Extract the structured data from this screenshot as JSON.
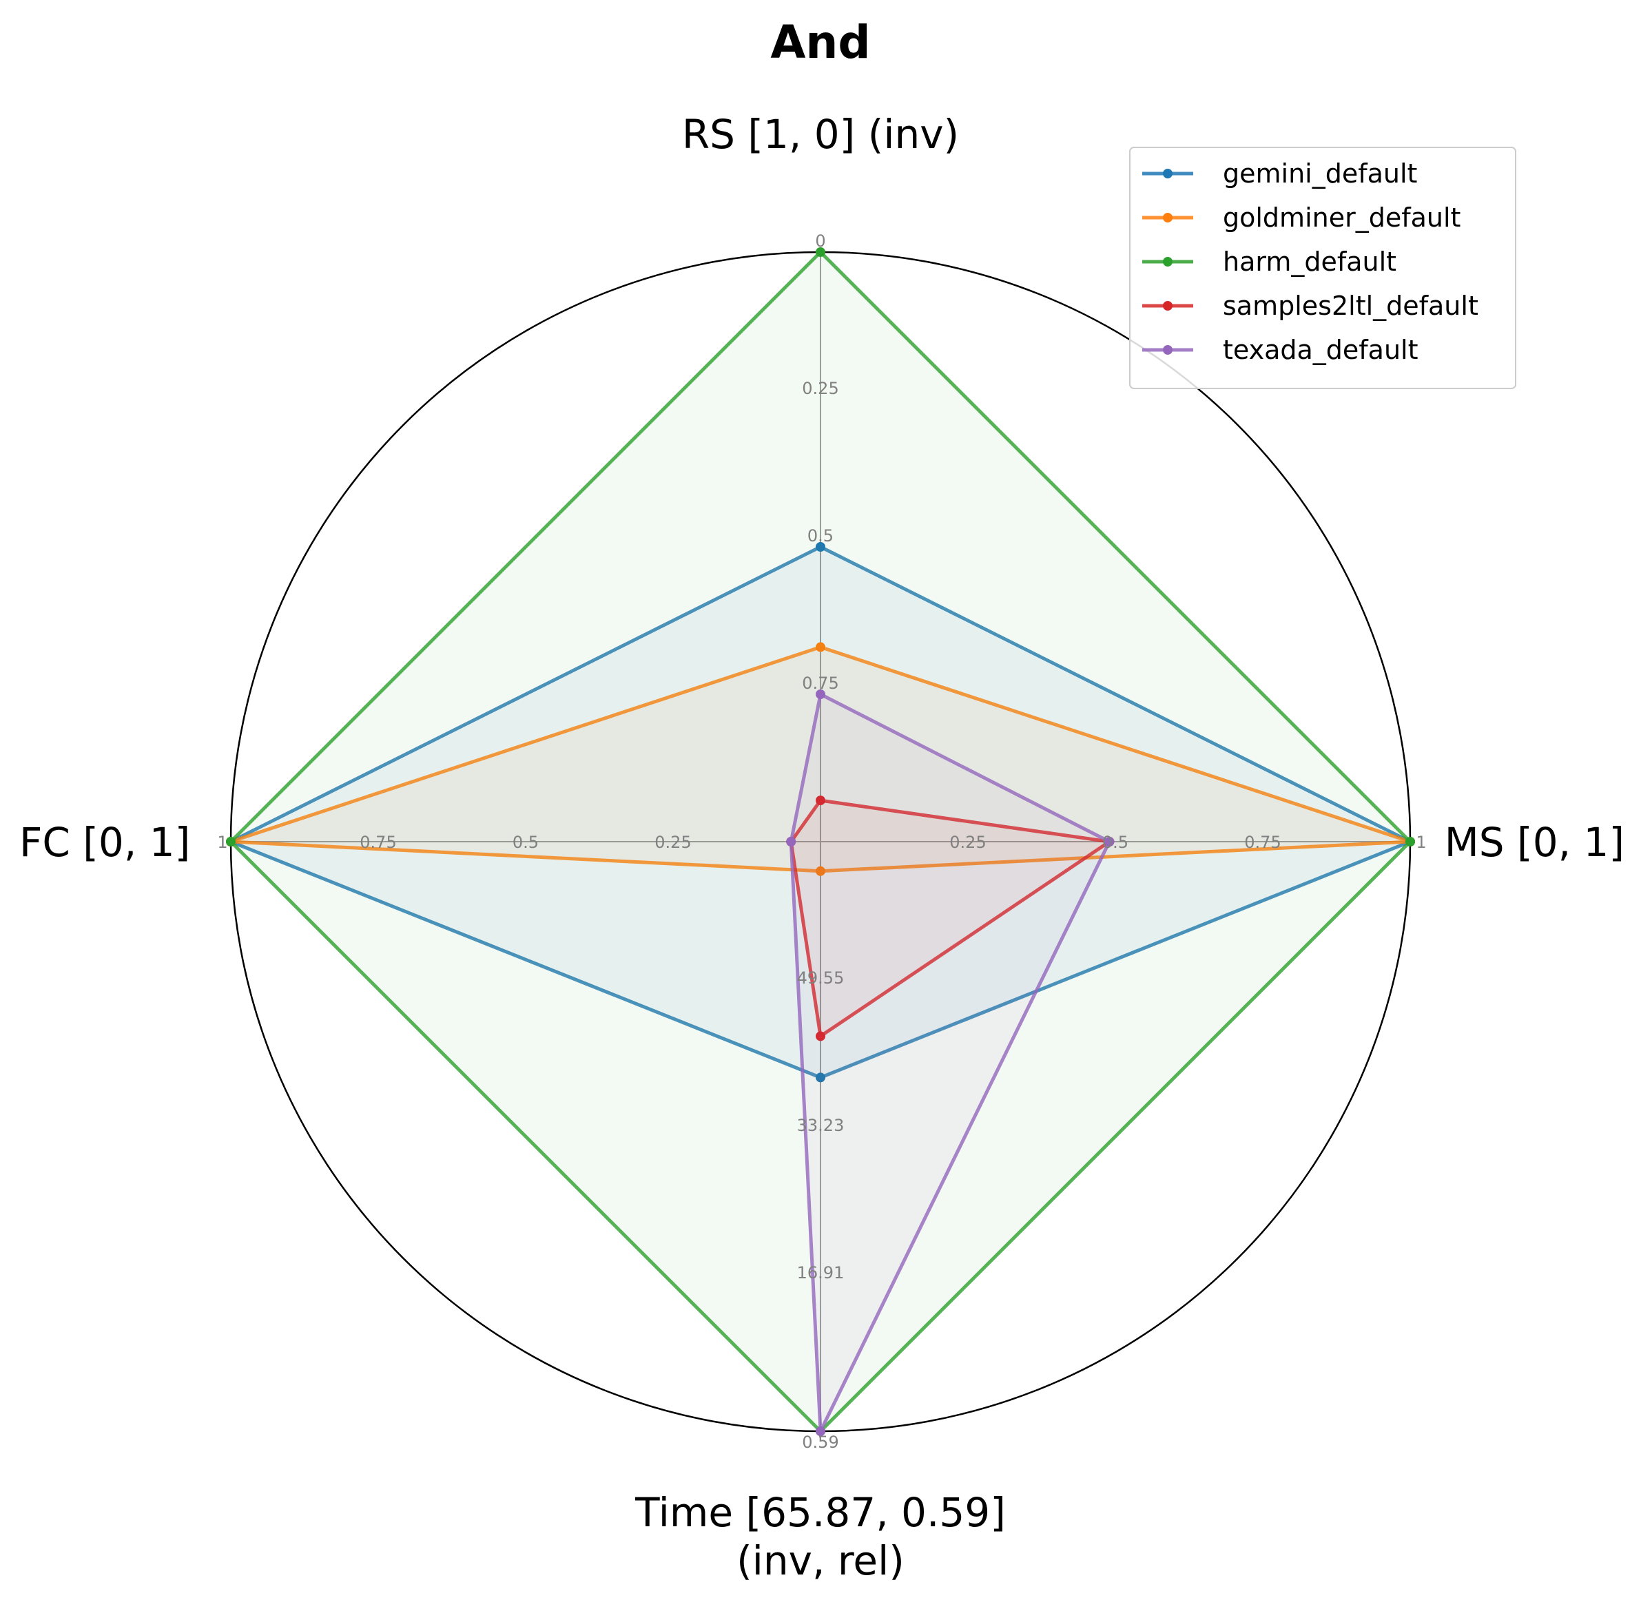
{
  "chart_data": {
    "type": "radar",
    "title": "And",
    "axes": [
      {
        "key": "RS",
        "label_lines": [
          "RS [1, 0] (inv)"
        ],
        "ticks": [
          "0",
          "0.25",
          "0.5",
          "0.75"
        ],
        "direction": "up"
      },
      {
        "key": "MS",
        "label_lines": [
          "MS [0, 1]"
        ],
        "ticks": [
          "0.25",
          "0.5",
          "0.75",
          "1"
        ],
        "direction": "right"
      },
      {
        "key": "Time",
        "label_lines": [
          "Time [65.87, 0.59]",
          "(inv, rel)"
        ],
        "ticks": [
          "49.55",
          "33.23",
          "16.91",
          "0.59"
        ],
        "direction": "down"
      },
      {
        "key": "FC",
        "label_lines": [
          "FC [0, 1]"
        ],
        "ticks": [
          "0.25",
          "0.5",
          "0.75",
          "1"
        ],
        "direction": "left"
      }
    ],
    "scale": "normalized 0 (center) to 1 (outer circle)",
    "series": [
      {
        "name": "gemini_default",
        "color": "#1f77b4",
        "values": {
          "RS": 0.5,
          "MS": 1.0,
          "Time": 0.4,
          "FC": 1.0
        }
      },
      {
        "name": "goldminer_default",
        "color": "#ff7f0e",
        "values": {
          "RS": 0.33,
          "MS": 1.0,
          "Time": 0.05,
          "FC": 1.0
        }
      },
      {
        "name": "harm_default",
        "color": "#2ca02c",
        "values": {
          "RS": 1.0,
          "MS": 1.0,
          "Time": 1.0,
          "FC": 1.0
        }
      },
      {
        "name": "samples2ltl_default",
        "color": "#d62728",
        "values": {
          "RS": 0.07,
          "MS": 0.49,
          "Time": 0.33,
          "FC": 0.05
        }
      },
      {
        "name": "texada_default",
        "color": "#9467bd",
        "values": {
          "RS": 0.25,
          "MS": 0.49,
          "Time": 1.0,
          "FC": 0.05
        }
      }
    ],
    "legend_position": "top-right"
  }
}
